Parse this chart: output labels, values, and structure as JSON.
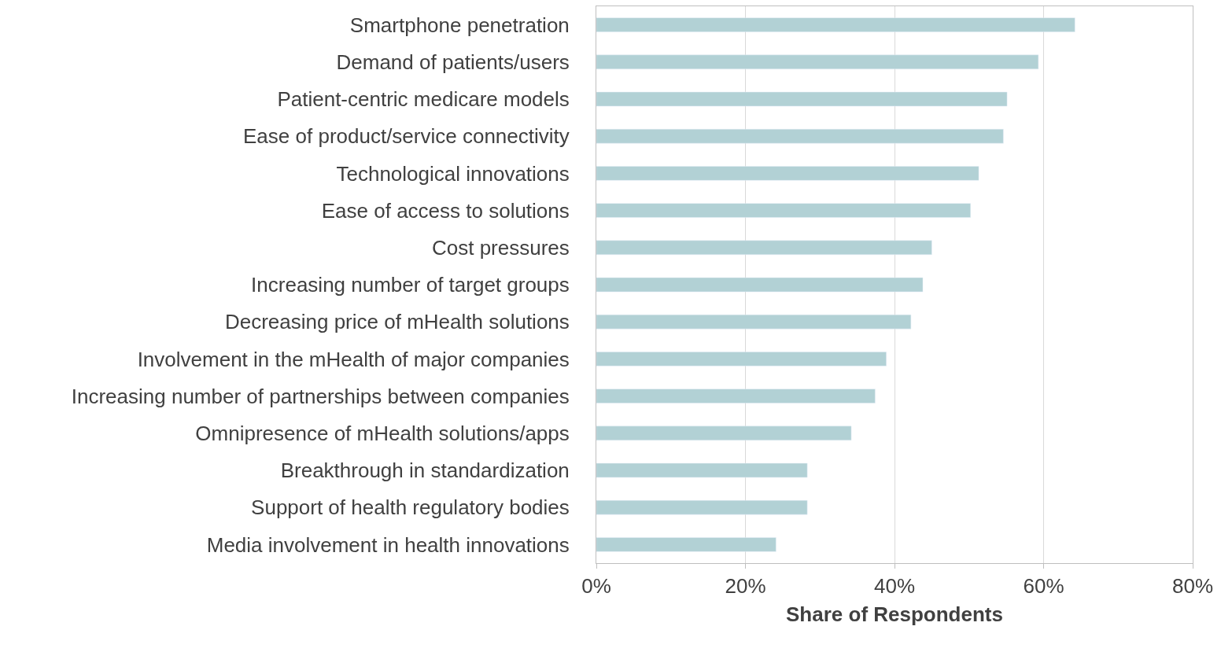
{
  "chart_data": {
    "type": "bar",
    "orientation": "horizontal",
    "xlabel": "Share of Respondents",
    "categories": [
      "Smartphone penetration",
      "Demand of patients/users",
      "Patient-centric medicare models",
      "Ease of product/service connectivity",
      "Technological innovations",
      "Ease of access to solutions",
      "Cost pressures",
      "Increasing number of target groups",
      "Decreasing price of mHealth solutions",
      "Involvement in the mHealth of major companies",
      "Increasing number of partnerships between companies",
      "Omnipresence of mHealth solutions/apps",
      "Breakthrough in standardization",
      "Support of health regulatory bodies",
      "Media involvement in health innovations"
    ],
    "values": [
      64.2,
      59.3,
      55.1,
      54.6,
      51.3,
      50.2,
      45.0,
      43.8,
      42.2,
      38.9,
      37.4,
      34.2,
      28.3,
      28.3,
      24.1
    ],
    "color": "#b2d1d5",
    "xlim": [
      0,
      80
    ],
    "xticks": [
      {
        "value": 0,
        "label": "0%"
      },
      {
        "value": 20,
        "label": "20%"
      },
      {
        "value": 40,
        "label": "40%"
      },
      {
        "value": 60,
        "label": "60%"
      },
      {
        "value": 80,
        "label": "80%"
      }
    ],
    "grid": "x",
    "legend": false
  }
}
